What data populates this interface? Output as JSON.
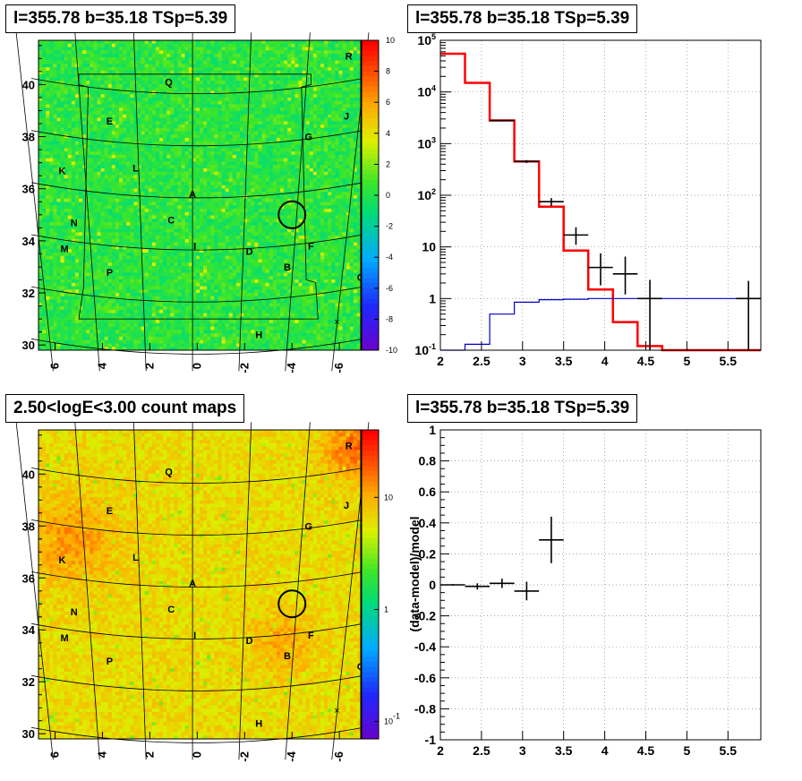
{
  "panels": {
    "top_left_title": "l=355.78 b=35.18 TSp=5.39",
    "top_right_title": "l=355.78 b=35.18 TSp=5.39",
    "bottom_left_title": "2.50<logE<3.00 count maps",
    "bottom_right_title": "l=355.78 b=35.18 TSp=5.39"
  },
  "chart_data": [
    {
      "type": "heatmap",
      "title": "l=355.78 b=35.18 TSp=5.39",
      "colormap": "rainbow",
      "background_value": 0,
      "x_ticks": [
        "6",
        "4",
        "2",
        "0",
        "-2",
        "-4",
        "-6"
      ],
      "y_ticks": [
        "30",
        "32",
        "34",
        "36",
        "38",
        "40"
      ],
      "xlim": [
        6.7,
        -6.9
      ],
      "ylim": [
        29.8,
        41.7
      ],
      "colorbar_ticks": [
        "10",
        "8",
        "6",
        "4",
        "2",
        "0",
        "-2",
        "-4",
        "-6",
        "-8",
        "-10"
      ],
      "zlim": [
        -10,
        10
      ],
      "sources": [
        {
          "label": "Q",
          "l": 1.2,
          "b": 40.1
        },
        {
          "label": "R",
          "l": -6.4,
          "b": 41.1
        },
        {
          "label": "E",
          "l": 3.7,
          "b": 38.6
        },
        {
          "label": "J",
          "l": -6.3,
          "b": 38.8
        },
        {
          "label": "G",
          "l": -4.7,
          "b": 38.0
        },
        {
          "label": "K",
          "l": 5.7,
          "b": 36.7
        },
        {
          "label": "L",
          "l": 2.6,
          "b": 36.8
        },
        {
          "label": "A",
          "l": 0.2,
          "b": 35.8
        },
        {
          "label": "C",
          "l": 1.1,
          "b": 34.8
        },
        {
          "label": "N",
          "l": 5.2,
          "b": 34.7
        },
        {
          "label": "M",
          "l": 5.6,
          "b": 33.7
        },
        {
          "label": "I",
          "l": 0.1,
          "b": 33.8
        },
        {
          "label": "D",
          "l": -2.2,
          "b": 33.6
        },
        {
          "label": "F",
          "l": -4.8,
          "b": 33.8
        },
        {
          "label": "B",
          "l": -3.8,
          "b": 33.0
        },
        {
          "label": "P",
          "l": 3.7,
          "b": 32.8
        },
        {
          "label": "O",
          "l": -6.9,
          "b": 32.6
        },
        {
          "label": "H",
          "l": -2.6,
          "b": 30.4
        }
      ],
      "marker_circle": {
        "l": -4.0,
        "b": 35.0
      },
      "marker_cross": {
        "l": -5.9,
        "b": 30.9
      }
    },
    {
      "type": "line",
      "title": "l=355.78 b=35.18 TSp=5.39",
      "xlim": [
        2,
        5.9
      ],
      "ylim": [
        0.1,
        100000
      ],
      "yscale": "log",
      "x_ticks": [
        "2",
        "2.5",
        "3",
        "3.5",
        "4",
        "4.5",
        "5",
        "5.5"
      ],
      "y_ticks": [
        "10^-1",
        "1",
        "10",
        "10^2",
        "10^3",
        "10^4",
        "10^5"
      ],
      "grid": true,
      "series": [
        {
          "style": "step",
          "color": "#ff0000",
          "edges": [
            2.0,
            2.3,
            2.6,
            2.9,
            3.2,
            3.5,
            3.8,
            4.1,
            4.4,
            4.7,
            5.0,
            5.3,
            5.6,
            5.9
          ],
          "values": [
            55000,
            15000,
            2800,
            450,
            60,
            8.5,
            1.5,
            0.35,
            0.12,
            0.1,
            0.1,
            0.1,
            0.1
          ]
        },
        {
          "style": "step",
          "color": "#0000cc",
          "edges": [
            2.0,
            2.3,
            2.6,
            2.9,
            3.2,
            3.5,
            3.8,
            4.1,
            4.4,
            4.7,
            5.0,
            5.3,
            5.6,
            5.9
          ],
          "values": [
            0.08,
            0.13,
            0.5,
            0.85,
            0.95,
            0.97,
            1.0,
            1.0,
            1.0,
            1.0,
            1.0,
            1.0,
            1.0
          ]
        },
        {
          "style": "errorbars",
          "color": "#000000",
          "points": [
            {
              "x": 2.75,
              "y": 2800,
              "xerr": 0.15,
              "ylo": 2700,
              "yhi": 2900
            },
            {
              "x": 3.05,
              "y": 450,
              "xerr": 0.15,
              "ylo": 420,
              "yhi": 480
            },
            {
              "x": 3.35,
              "y": 75,
              "xerr": 0.15,
              "ylo": 62,
              "yhi": 88
            },
            {
              "x": 3.65,
              "y": 17,
              "xerr": 0.15,
              "ylo": 11,
              "yhi": 24
            },
            {
              "x": 3.95,
              "y": 4,
              "xerr": 0.15,
              "ylo": 1.8,
              "yhi": 7.5
            },
            {
              "x": 4.25,
              "y": 3,
              "xerr": 0.15,
              "ylo": 1.2,
              "yhi": 6.5
            },
            {
              "x": 4.55,
              "y": 1,
              "xerr": 0.15,
              "ylo": 0.1,
              "yhi": 2.3
            },
            {
              "x": 5.75,
              "y": 1,
              "xerr": 0.15,
              "ylo": 0.1,
              "yhi": 2.2
            }
          ]
        }
      ]
    },
    {
      "type": "heatmap",
      "title": "2.50<logE<3.00 count maps",
      "colormap": "rainbow",
      "zscale": "log",
      "x_ticks": [
        "6",
        "4",
        "2",
        "0",
        "-2",
        "-4",
        "-6"
      ],
      "y_ticks": [
        "30",
        "32",
        "34",
        "36",
        "38",
        "40"
      ],
      "xlim": [
        6.7,
        -6.9
      ],
      "ylim": [
        29.8,
        41.7
      ],
      "colorbar_ticks": [
        "10",
        "1",
        "10^-1"
      ],
      "zlim": [
        0.07,
        40
      ],
      "sources": [
        {
          "label": "Q",
          "l": 1.2,
          "b": 40.1
        },
        {
          "label": "R",
          "l": -6.4,
          "b": 41.1
        },
        {
          "label": "E",
          "l": 3.7,
          "b": 38.6
        },
        {
          "label": "J",
          "l": -6.3,
          "b": 38.8
        },
        {
          "label": "G",
          "l": -4.7,
          "b": 38.0
        },
        {
          "label": "K",
          "l": 5.7,
          "b": 36.7
        },
        {
          "label": "L",
          "l": 2.6,
          "b": 36.8
        },
        {
          "label": "A",
          "l": 0.2,
          "b": 35.8
        },
        {
          "label": "C",
          "l": 1.1,
          "b": 34.8
        },
        {
          "label": "N",
          "l": 5.2,
          "b": 34.7
        },
        {
          "label": "M",
          "l": 5.6,
          "b": 33.7
        },
        {
          "label": "I",
          "l": 0.1,
          "b": 33.8
        },
        {
          "label": "D",
          "l": -2.2,
          "b": 33.6
        },
        {
          "label": "F",
          "l": -4.8,
          "b": 33.8
        },
        {
          "label": "B",
          "l": -3.8,
          "b": 33.0
        },
        {
          "label": "P",
          "l": 3.7,
          "b": 32.8
        },
        {
          "label": "O",
          "l": -6.9,
          "b": 32.6
        },
        {
          "label": "H",
          "l": -2.6,
          "b": 30.4
        }
      ],
      "marker_circle": {
        "l": -4.0,
        "b": 35.0
      },
      "marker_cross": {
        "l": -5.9,
        "b": 30.9
      }
    },
    {
      "type": "scatter",
      "title": "l=355.78 b=35.18 TSp=5.39",
      "ylabel": "(data-model)/model",
      "xlim": [
        2,
        5.9
      ],
      "ylim": [
        -1,
        1
      ],
      "x_ticks": [
        "2",
        "2.5",
        "3",
        "3.5",
        "4",
        "4.5",
        "5",
        "5.5"
      ],
      "y_ticks": [
        "-1",
        "-0.8",
        "-0.6",
        "-0.4",
        "-0.2",
        "0",
        "0.2",
        "0.4",
        "0.6",
        "0.8",
        "1"
      ],
      "grid": true,
      "points": [
        {
          "x": 2.15,
          "y": 0.0,
          "xerr": 0.15,
          "yerr": 0.005
        },
        {
          "x": 2.45,
          "y": -0.01,
          "xerr": 0.15,
          "yerr": 0.02
        },
        {
          "x": 2.75,
          "y": 0.01,
          "xerr": 0.15,
          "yerr": 0.03
        },
        {
          "x": 3.05,
          "y": -0.04,
          "xerr": 0.15,
          "yerr": 0.06
        },
        {
          "x": 3.35,
          "y": 0.29,
          "xerr": 0.15,
          "yerr": 0.15
        }
      ]
    }
  ]
}
